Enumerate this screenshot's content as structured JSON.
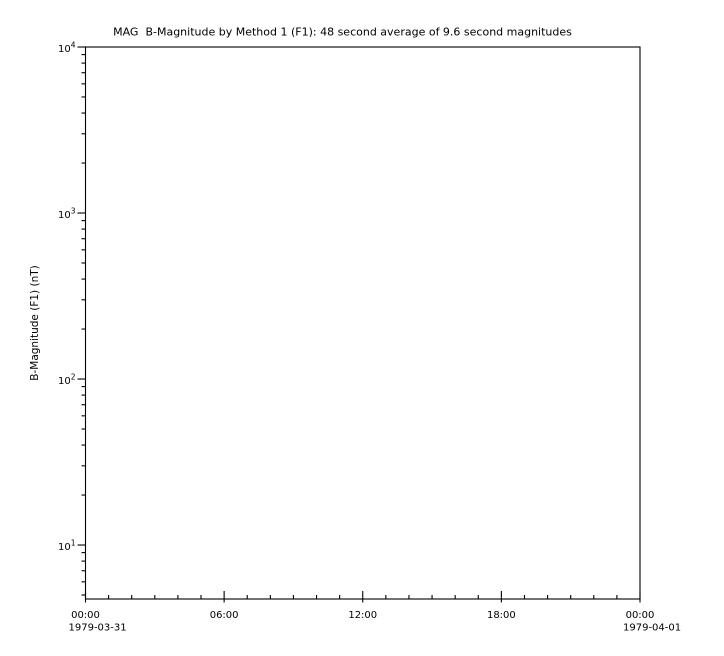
{
  "figure": {
    "background": "#ffffff",
    "axis_color": "#000000",
    "text_color": "#000000"
  },
  "chart_data": {
    "type": "line",
    "title": "MAG  B-Magnitude by Method 1 (F1): 48 second average of 9.6 second magnitudes",
    "xlabel": "",
    "ylabel": "B-Magnitude (F1) (nT)",
    "grid": false,
    "legend": null,
    "series": [],
    "x_axis": {
      "lim_hours": [
        0,
        24
      ],
      "minor_tick_interval_hours": 1,
      "major_ticks": [
        {
          "hour": 0,
          "label": "00:00",
          "date": "1979-03-31"
        },
        {
          "hour": 6,
          "label": "06:00"
        },
        {
          "hour": 12,
          "label": "12:00"
        },
        {
          "hour": 18,
          "label": "18:00"
        },
        {
          "hour": 24,
          "label": "00:00",
          "date": "1979-04-01"
        }
      ]
    },
    "y_axis": {
      "scale": "log",
      "lim": [
        4.73,
        10000
      ],
      "major_tick_base": 10,
      "major_tick_exponents": [
        1,
        2,
        3,
        4
      ],
      "minor_tick_mantissas": [
        2,
        3,
        4,
        5,
        6,
        7,
        8,
        9
      ]
    }
  }
}
